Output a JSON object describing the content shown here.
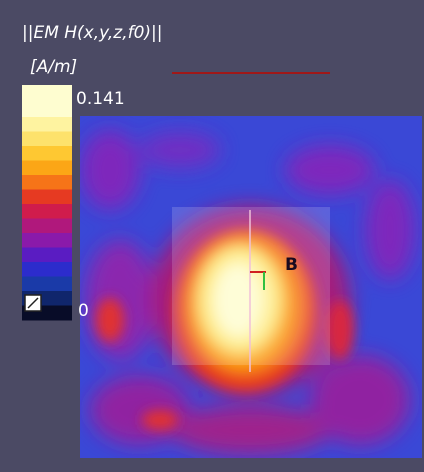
{
  "legend": {
    "title": "||EM H(x,y,z,f0)||",
    "unit": "[A/m]",
    "max_label": "0.141",
    "min_label": "0",
    "colors": [
      "#fefdd0",
      "#fef3a0",
      "#fde26c",
      "#fec832",
      "#fca616",
      "#f67418",
      "#e63a22",
      "#d01c4c",
      "#b0187c",
      "#8a1aaa",
      "#5a1cc2",
      "#2c2ccc",
      "#1a3aa8",
      "#10266c",
      "#080c28"
    ]
  },
  "marker_label": "B"
}
